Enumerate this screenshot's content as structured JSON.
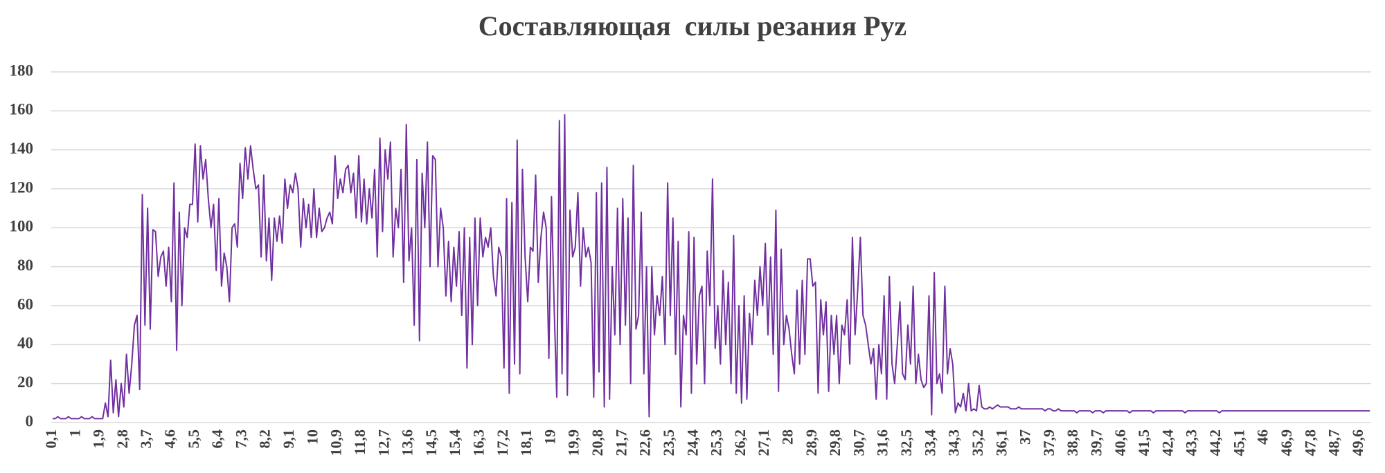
{
  "chart_data": {
    "type": "line",
    "title": "Составляющая  силы резания Pyz",
    "color": "#7030a0",
    "grid": true,
    "ylim": [
      0,
      180
    ],
    "yticks": [
      0,
      20,
      40,
      60,
      80,
      100,
      120,
      140,
      160,
      180
    ],
    "categories": [
      "0,1",
      null,
      null,
      null,
      null,
      null,
      null,
      null,
      null,
      "1",
      null,
      null,
      null,
      null,
      null,
      null,
      null,
      null,
      "1,9",
      null,
      null,
      null,
      null,
      null,
      null,
      null,
      null,
      "2,8",
      null,
      null,
      null,
      null,
      null,
      null,
      null,
      null,
      "3,7",
      null,
      null,
      null,
      null,
      null,
      null,
      null,
      null,
      "4,6",
      null,
      null,
      null,
      null,
      null,
      null,
      null,
      null,
      "5,5",
      null,
      null,
      null,
      null,
      null,
      null,
      null,
      null,
      "6,4",
      null,
      null,
      null,
      null,
      null,
      null,
      null,
      null,
      "7,3",
      null,
      null,
      null,
      null,
      null,
      null,
      null,
      null,
      "8,2",
      null,
      null,
      null,
      null,
      null,
      null,
      null,
      null,
      "9,1",
      null,
      null,
      null,
      null,
      null,
      null,
      null,
      null,
      "10",
      null,
      null,
      null,
      null,
      null,
      null,
      null,
      null,
      "10,9",
      null,
      null,
      null,
      null,
      null,
      null,
      null,
      null,
      "11,8",
      null,
      null,
      null,
      null,
      null,
      null,
      null,
      null,
      "12,7",
      null,
      null,
      null,
      null,
      null,
      null,
      null,
      null,
      "13,6",
      null,
      null,
      null,
      null,
      null,
      null,
      null,
      null,
      "14,5",
      null,
      null,
      null,
      null,
      null,
      null,
      null,
      null,
      "15,4",
      null,
      null,
      null,
      null,
      null,
      null,
      null,
      null,
      "16,3",
      null,
      null,
      null,
      null,
      null,
      null,
      null,
      null,
      "17,2",
      null,
      null,
      null,
      null,
      null,
      null,
      null,
      null,
      "18,1",
      null,
      null,
      null,
      null,
      null,
      null,
      null,
      null,
      "19",
      null,
      null,
      null,
      null,
      null,
      null,
      null,
      null,
      "19,9",
      null,
      null,
      null,
      null,
      null,
      null,
      null,
      null,
      "20,8",
      null,
      null,
      null,
      null,
      null,
      null,
      null,
      null,
      "21,7",
      null,
      null,
      null,
      null,
      null,
      null,
      null,
      null,
      "22,6",
      null,
      null,
      null,
      null,
      null,
      null,
      null,
      null,
      "23,5",
      null,
      null,
      null,
      null,
      null,
      null,
      null,
      null,
      "24,4",
      null,
      null,
      null,
      null,
      null,
      null,
      null,
      null,
      "25,3",
      null,
      null,
      null,
      null,
      null,
      null,
      null,
      null,
      "26,2",
      null,
      null,
      null,
      null,
      null,
      null,
      null,
      null,
      "27,1",
      null,
      null,
      null,
      null,
      null,
      null,
      null,
      null,
      "28",
      null,
      null,
      null,
      null,
      null,
      null,
      null,
      null,
      "28,9",
      null,
      null,
      null,
      null,
      null,
      null,
      null,
      null,
      "29,8",
      null,
      null,
      null,
      null,
      null,
      null,
      null,
      null,
      "30,7",
      null,
      null,
      null,
      null,
      null,
      null,
      null,
      null,
      "31,6",
      null,
      null,
      null,
      null,
      null,
      null,
      null,
      null,
      "32,5",
      null,
      null,
      null,
      null,
      null,
      null,
      null,
      null,
      "33,4",
      null,
      null,
      null,
      null,
      null,
      null,
      null,
      null,
      "34,3",
      null,
      null,
      null,
      null,
      null,
      null,
      null,
      null,
      "35,2",
      null,
      null,
      null,
      null,
      null,
      null,
      null,
      null,
      "36,1",
      null,
      null,
      null,
      null,
      null,
      null,
      null,
      null,
      "37",
      null,
      null,
      null,
      null,
      null,
      null,
      null,
      null,
      "37,9",
      null,
      null,
      null,
      null,
      null,
      null,
      null,
      null,
      "38,8",
      null,
      null,
      null,
      null,
      null,
      null,
      null,
      null,
      "39,7",
      null,
      null,
      null,
      null,
      null,
      null,
      null,
      null,
      "40,6",
      null,
      null,
      null,
      null,
      null,
      null,
      null,
      null,
      "41,5",
      null,
      null,
      null,
      null,
      null,
      null,
      null,
      null,
      "42,4",
      null,
      null,
      null,
      null,
      null,
      null,
      null,
      null,
      "43,3",
      null,
      null,
      null,
      null,
      null,
      null,
      null,
      null,
      "44,2",
      null,
      null,
      null,
      null,
      null,
      null,
      null,
      null,
      "45,1",
      null,
      null,
      null,
      null,
      null,
      null,
      null,
      null,
      "46",
      null,
      null,
      null,
      null,
      null,
      null,
      null,
      null,
      "46,9",
      null,
      null,
      null,
      null,
      null,
      null,
      null,
      null,
      "47,8",
      null,
      null,
      null,
      null,
      null,
      null,
      null,
      null,
      "48,7",
      null,
      null,
      null,
      null,
      null,
      null,
      null,
      null,
      "49,6",
      null,
      null,
      null,
      null
    ],
    "values": [
      2,
      2,
      3,
      2,
      2,
      2,
      3,
      2,
      2,
      2,
      2,
      3,
      2,
      2,
      2,
      3,
      2,
      2,
      2,
      2,
      10,
      3,
      32,
      5,
      22,
      3,
      20,
      8,
      35,
      15,
      30,
      50,
      55,
      17,
      117,
      50,
      110,
      48,
      99,
      98,
      75,
      85,
      88,
      70,
      90,
      62,
      123,
      37,
      108,
      60,
      100,
      95,
      112,
      112,
      143,
      103,
      142,
      125,
      135,
      115,
      100,
      112,
      78,
      115,
      70,
      87,
      80,
      62,
      100,
      102,
      90,
      133,
      115,
      141,
      125,
      142,
      130,
      120,
      122,
      85,
      127,
      83,
      105,
      73,
      105,
      93,
      106,
      92,
      125,
      110,
      122,
      118,
      128,
      120,
      90,
      115,
      100,
      112,
      95,
      120,
      95,
      110,
      98,
      100,
      105,
      108,
      102,
      137,
      115,
      125,
      118,
      130,
      132,
      118,
      128,
      105,
      137,
      103,
      125,
      102,
      120,
      105,
      130,
      85,
      146,
      98,
      140,
      125,
      144,
      85,
      110,
      100,
      130,
      72,
      153,
      83,
      100,
      50,
      135,
      42,
      128,
      100,
      144,
      80,
      137,
      135,
      80,
      110,
      100,
      65,
      93,
      62,
      90,
      70,
      98,
      55,
      100,
      28,
      95,
      40,
      105,
      60,
      105,
      85,
      95,
      90,
      100,
      75,
      65,
      90,
      85,
      28,
      115,
      15,
      113,
      30,
      145,
      25,
      130,
      85,
      62,
      90,
      88,
      127,
      72,
      95,
      108,
      100,
      33,
      116,
      60,
      13,
      155,
      25,
      158,
      14,
      109,
      85,
      90,
      118,
      70,
      100,
      85,
      90,
      82,
      13,
      118,
      26,
      123,
      8,
      131,
      12,
      80,
      45,
      110,
      40,
      115,
      50,
      105,
      20,
      132,
      48,
      55,
      108,
      25,
      80,
      3,
      80,
      45,
      65,
      55,
      75,
      40,
      123,
      55,
      105,
      35,
      93,
      8,
      55,
      45,
      98,
      15,
      95,
      30,
      65,
      70,
      20,
      88,
      60,
      125,
      38,
      60,
      30,
      78,
      40,
      72,
      20,
      96,
      15,
      60,
      10,
      65,
      12,
      56,
      40,
      73,
      55,
      80,
      60,
      92,
      45,
      85,
      35,
      109,
      16,
      89,
      40,
      55,
      48,
      35,
      25,
      68,
      30,
      73,
      35,
      84,
      84,
      70,
      72,
      15,
      63,
      45,
      62,
      16,
      55,
      35,
      55,
      20,
      50,
      45,
      63,
      30,
      95,
      45,
      68,
      95,
      55,
      50,
      40,
      30,
      38,
      12,
      40,
      25,
      65,
      12,
      75,
      30,
      20,
      40,
      62,
      25,
      22,
      50,
      30,
      70,
      20,
      35,
      22,
      18,
      20,
      65,
      4,
      77,
      20,
      25,
      15,
      70,
      25,
      38,
      30,
      5,
      10,
      8,
      15,
      6,
      20,
      6,
      7,
      6,
      19,
      8,
      7,
      7,
      8,
      7,
      8,
      9,
      8,
      8,
      8,
      8,
      7,
      7,
      7,
      8,
      7,
      7,
      7,
      7,
      7,
      7,
      7,
      7,
      7,
      6,
      7,
      7,
      6,
      6,
      7,
      6,
      6,
      6,
      6,
      6,
      6,
      5,
      6,
      6,
      6,
      6,
      6,
      5,
      6,
      6,
      6,
      5,
      6,
      6,
      6,
      6,
      6,
      6,
      6,
      6,
      6,
      5,
      6,
      6,
      6,
      6,
      6,
      6,
      6,
      6,
      5,
      6,
      6,
      6,
      6,
      6,
      6,
      6,
      6,
      6,
      6,
      6,
      5,
      6,
      6,
      6,
      6,
      6,
      6,
      6,
      6,
      6,
      6,
      6,
      6,
      5,
      6,
      6,
      6,
      6,
      6,
      6,
      6,
      6,
      6,
      6,
      6,
      6,
      6,
      6,
      6,
      6,
      6,
      6,
      6,
      6,
      6,
      6,
      6,
      6,
      6,
      6,
      6,
      6,
      6,
      6,
      6,
      6,
      6,
      6,
      6,
      6,
      6,
      6,
      6,
      6,
      6,
      6,
      6,
      6,
      6,
      6,
      6,
      6,
      6,
      6,
      6,
      6,
      6,
      6,
      6,
      6,
      6
    ]
  }
}
